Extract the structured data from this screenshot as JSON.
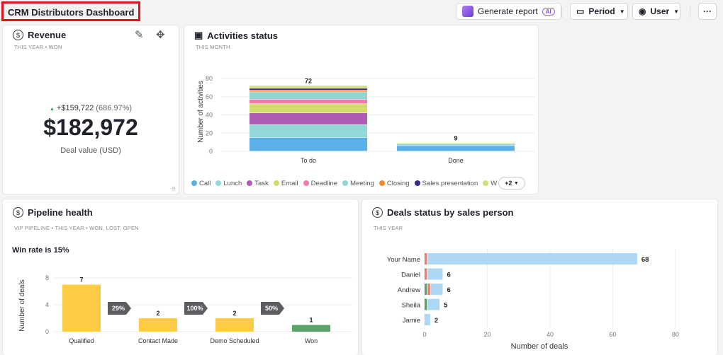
{
  "header": {
    "title": "CRM Distributors Dashboard",
    "generate_report": "Generate report",
    "ai_badge": "AI",
    "period": "Period",
    "user": "User",
    "more": "···"
  },
  "revenue": {
    "title": "Revenue",
    "subtitle": "THIS YEAR • WON",
    "change": "+$159,722",
    "change_pct": "(686.97%)",
    "value": "$182,972",
    "label": "Deal value (USD)",
    "trend_color": "#2e9b4f"
  },
  "activities": {
    "title": "Activities status",
    "subtitle": "THIS MONTH",
    "more_label": "+2",
    "chart_data": {
      "type": "bar",
      "stacked": true,
      "categories": [
        "To do",
        "Done"
      ],
      "ylabel": "Number of activities",
      "ylim": [
        0,
        80
      ],
      "yticks": [
        0,
        20,
        40,
        60,
        80
      ],
      "totals": [
        72,
        9
      ],
      "series": [
        {
          "name": "Call",
          "color": "#5bb0e8",
          "values": [
            15,
            6
          ]
        },
        {
          "name": "Lunch",
          "color": "#93d8d8",
          "values": [
            14,
            2
          ]
        },
        {
          "name": "Task",
          "color": "#b05cb5",
          "values": [
            13,
            0
          ]
        },
        {
          "name": "Email",
          "color": "#d3dc6a",
          "values": [
            10,
            0
          ]
        },
        {
          "name": "Deadline",
          "color": "#f07ab0",
          "values": [
            5,
            0
          ]
        },
        {
          "name": "Meeting",
          "color": "#8fd6d3",
          "values": [
            8,
            0
          ]
        },
        {
          "name": "Closing",
          "color": "#f38b2a",
          "values": [
            2,
            0
          ]
        },
        {
          "name": "Sales presentation",
          "color": "#3c2a86",
          "values": [
            2,
            0
          ]
        },
        {
          "name": "W",
          "color": "#cfe07a",
          "values": [
            3,
            1
          ]
        }
      ]
    }
  },
  "pipeline": {
    "title": "Pipeline health",
    "subtitle": "VIP PIPELINE • THIS YEAR • WON, LOST, OPEN",
    "win_rate": "Win rate is 15%",
    "chart_data": {
      "type": "bar",
      "categories": [
        "Qualified",
        "Contact Made",
        "Demo Scheduled",
        "Won"
      ],
      "values": [
        7,
        2,
        2,
        1
      ],
      "colors": [
        "#fecb45",
        "#fecb45",
        "#fecb45",
        "#5aa469"
      ],
      "ylabel": "Number of deals",
      "ylim": [
        0,
        8
      ],
      "yticks": [
        0,
        4,
        8
      ],
      "conversions": [
        "29%",
        "100%",
        "50%"
      ]
    }
  },
  "deals": {
    "title": "Deals status by sales person",
    "subtitle": "THIS YEAR",
    "chart_data": {
      "type": "bar",
      "orientation": "horizontal",
      "stacked": true,
      "categories": [
        "Your Name",
        "Daniel",
        "Andrew",
        "Sheila",
        "Jamie"
      ],
      "xlabel": "Number of deals",
      "xlim": [
        0,
        80
      ],
      "xticks": [
        0,
        20,
        40,
        60,
        80
      ],
      "totals": [
        68,
        6,
        6,
        5,
        2
      ],
      "series": [
        {
          "color": "#5aa469",
          "values": [
            0,
            0,
            1,
            1,
            0
          ]
        },
        {
          "color": "#f07b6e",
          "values": [
            1,
            1,
            1,
            0,
            0
          ]
        },
        {
          "color": "#acd8f5",
          "values": [
            67,
            5,
            4,
            4,
            2
          ]
        }
      ]
    }
  }
}
